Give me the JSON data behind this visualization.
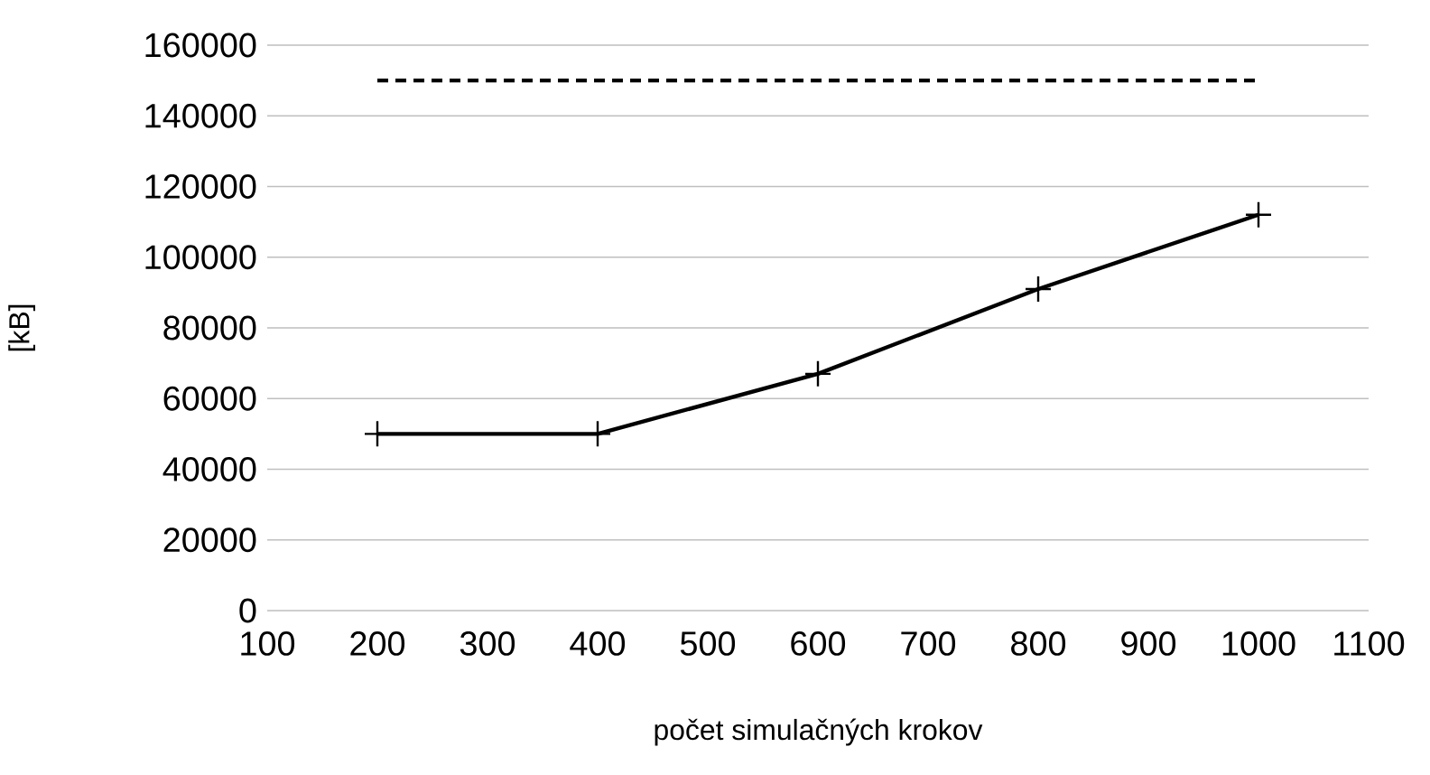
{
  "chart_data": {
    "type": "line",
    "xlabel": "počet simulačných krokov",
    "ylabel": "[kB]",
    "x": [
      200,
      400,
      600,
      800,
      1000
    ],
    "series": [
      {
        "color": "#000000",
        "values": [
          50000,
          50000,
          67000,
          91000,
          112000
        ],
        "marker": "cross",
        "line_style": "solid"
      },
      {
        "color": "#000000",
        "values": [
          150000,
          150000,
          150000,
          150000,
          150000
        ],
        "marker": "none",
        "line_style": "dashed"
      }
    ],
    "xlim": [
      100,
      1100
    ],
    "xticks": [
      100,
      200,
      300,
      400,
      500,
      600,
      700,
      800,
      900,
      1000,
      1100
    ],
    "ylim": [
      0,
      160000
    ],
    "yticks": [
      0,
      20000,
      40000,
      60000,
      80000,
      100000,
      120000,
      140000,
      160000
    ],
    "grid": "y"
  }
}
